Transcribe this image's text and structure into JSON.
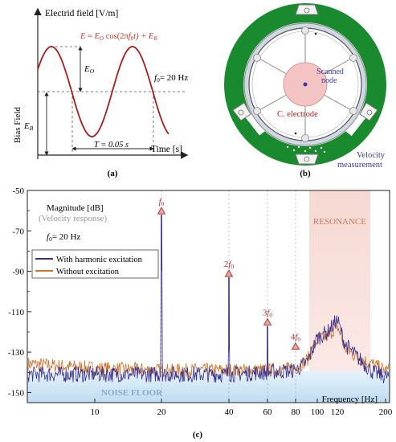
{
  "panel_a": {
    "y_axis_label": "Electrid field [V/m]",
    "x_axis_label": "Time [s]",
    "equation": "E = E₀ cos(2πf₀t) + EB",
    "equation_parts": {
      "lhs": "E",
      "eq": " = ",
      "e0": "E",
      "e0_sub": "O",
      "cos": " cos(2π",
      "f": "f",
      "f_sub": "0",
      "t": "t) + ",
      "eb": "E",
      "eb_sub": "B"
    },
    "amplitude_label": "E",
    "amplitude_sub": "O",
    "bias_label": "E",
    "bias_sub": "B",
    "bias_field_label": "Bias Field",
    "freq_label": "f",
    "freq_sub": "0",
    "freq_value": "= 20 Hz",
    "period_label": "T = 0.05 s",
    "caption": "(a)"
  },
  "panel_b": {
    "scanned_label_1": "Scanned",
    "scanned_label_2": "node",
    "electrode_label": "C. electrode",
    "velocity_label_1": "Velocity",
    "velocity_label_2": "measurement",
    "caption": "(b)",
    "accent_green": "#1a8a2e",
    "electrode_color": "#f2c0c0",
    "label_blue": "#3b3a9e",
    "label_red": "#b02020"
  },
  "panel_c": {
    "caption": "(c)",
    "magnitude_label": "Magnitude [dB]",
    "velocity_response_label": "(Velocity response)",
    "f0_label": "f",
    "f0_sub": "0",
    "f0_value": "= 20 Hz",
    "resonance_label": "RESONANCE",
    "noise_floor_label": "NOISE FLOOR",
    "frequency_label": "Frequency [Hz]",
    "legend": [
      {
        "label": "With harmonic excitation",
        "color": "#3a2f8f"
      },
      {
        "label": "Without excitation",
        "color": "#c8742a"
      }
    ],
    "harmonic_markers": [
      {
        "prefix": "",
        "label": "f",
        "sub": "0",
        "freq": 20,
        "db": -62
      },
      {
        "prefix": "2",
        "label": "f",
        "sub": "0",
        "freq": 40,
        "db": -93
      },
      {
        "prefix": "3",
        "label": "f",
        "sub": "0",
        "freq": 60,
        "db": -117
      },
      {
        "prefix": "4",
        "label": "f",
        "sub": "0",
        "freq": 80,
        "db": -129
      }
    ],
    "y_ticks": [
      "-50",
      "-70",
      "-90",
      "-110",
      "-130",
      "-150"
    ],
    "x_ticks": [
      "10",
      "20",
      "40",
      "60",
      "80",
      "100",
      "120",
      "200"
    ]
  },
  "chart_data": {
    "type": "line",
    "xlabel": "Frequency [Hz]",
    "ylabel": "Magnitude [dB]",
    "ylim": [
      -155,
      -50
    ],
    "x_scale": "log",
    "xlim": [
      4,
      200
    ],
    "series": [
      {
        "name": "With harmonic excitation",
        "x": [
          4,
          10,
          19.8,
          20,
          20.2,
          39.8,
          40,
          40.2,
          59.8,
          60,
          60.2,
          79.8,
          80,
          80.2,
          90,
          100,
          110,
          120,
          130,
          150,
          175,
          200
        ],
        "y": [
          -141,
          -141,
          -141,
          -62,
          -141,
          -141,
          -93,
          -141,
          -140,
          -117,
          -140,
          -139,
          -129,
          -139,
          -135,
          -123,
          -120,
          -114,
          -126,
          -133,
          -140,
          -142
        ]
      },
      {
        "name": "Without excitation",
        "x": [
          4,
          10,
          20,
          40,
          60,
          80,
          90,
          100,
          110,
          120,
          130,
          150,
          175,
          200
        ],
        "y": [
          -135,
          -138,
          -139,
          -139,
          -139,
          -138,
          -134,
          -124,
          -122,
          -117,
          -128,
          -133,
          -136,
          -139
        ]
      }
    ]
  }
}
